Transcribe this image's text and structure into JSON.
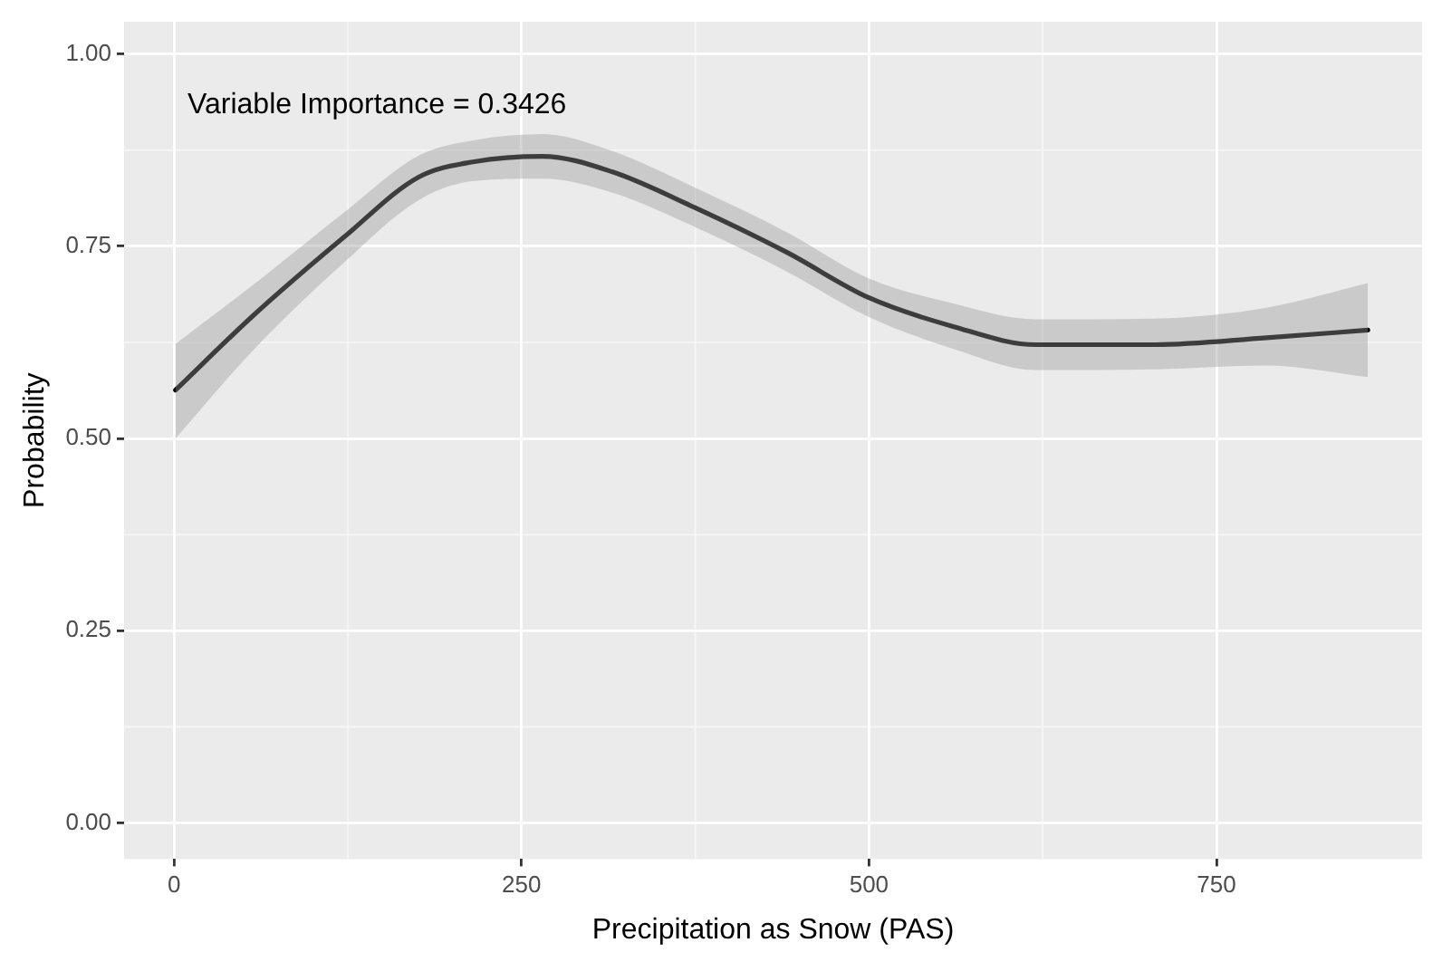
{
  "chart_data": {
    "type": "line",
    "xlabel": "Precipitation as Snow (PAS)",
    "ylabel": "Probability",
    "annotations": [
      "Variable Importance = 0.3426"
    ],
    "x": [
      1,
      57,
      123,
      176,
      216,
      265,
      315,
      375,
      441,
      500,
      560,
      620,
      706,
      786,
      859
    ],
    "series": [
      {
        "color": "#000000",
        "values": [
          0.563,
          0.66,
          0.763,
          0.84,
          0.86,
          0.867,
          0.847,
          0.8,
          0.742,
          0.683,
          0.646,
          0.622,
          0.622,
          0.631,
          0.641
        ],
        "lower": [
          0.5,
          0.615,
          0.73,
          0.81,
          0.835,
          0.838,
          0.82,
          0.775,
          0.717,
          0.658,
          0.617,
          0.589,
          0.59,
          0.595,
          0.58
        ],
        "upper": [
          0.623,
          0.7,
          0.795,
          0.868,
          0.888,
          0.896,
          0.874,
          0.826,
          0.768,
          0.708,
          0.676,
          0.655,
          0.656,
          0.67,
          0.702
        ]
      }
    ],
    "xlim": [
      -36,
      898
    ],
    "xticks": [
      0,
      250,
      500,
      750
    ],
    "ylim": [
      -0.047,
      1.042
    ],
    "yticks": [
      {
        "value": 0,
        "label": "0.00"
      },
      {
        "value": 0.25,
        "label": "0.25"
      },
      {
        "value": 0.5,
        "label": "0.50"
      },
      {
        "value": 0.75,
        "label": "0.75"
      },
      {
        "value": 1,
        "label": "1.00"
      }
    ],
    "grid": true,
    "legend": false,
    "marker": "none",
    "line_style": "solid"
  }
}
